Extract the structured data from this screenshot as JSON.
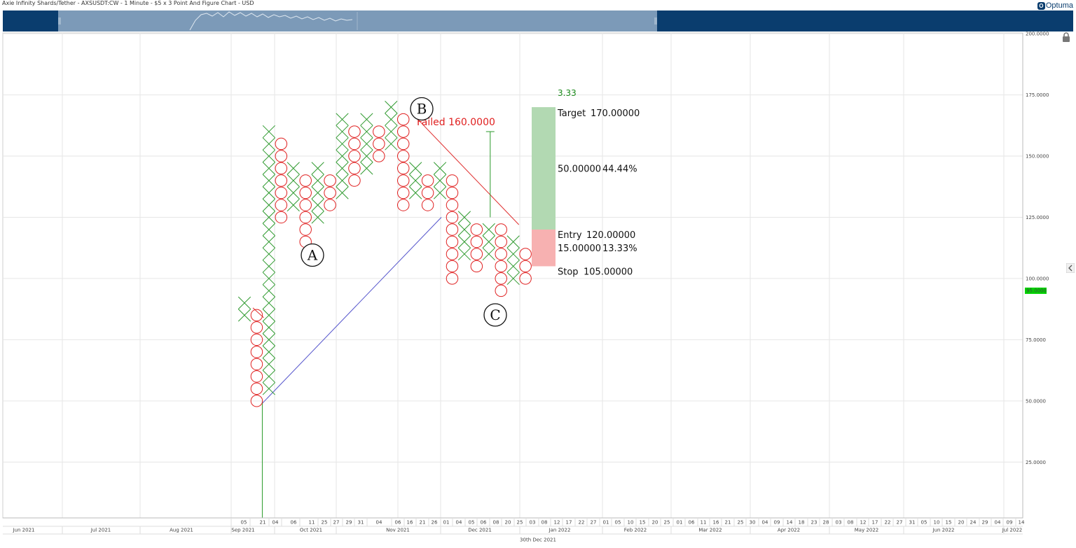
{
  "header": {
    "title": "Axie Infinity Shards/Tether - AXSUSDT:CW - 1 Minute - $5 x 3 Point And Figure Chart - USD",
    "logo": "Optuma"
  },
  "chart_data": {
    "type": "point-and-figure",
    "box_size": 5,
    "reversal": 3,
    "ylim": [
      0,
      200
    ],
    "y_ticks": [
      25,
      50,
      75,
      100,
      125,
      150,
      175,
      200
    ],
    "y_tick_labels": [
      "25.0000",
      "50.0000",
      "75.0000",
      "100.0000",
      "125.0000",
      "150.0000",
      "175.0000",
      "200.0000"
    ],
    "last_price": "95.0000",
    "columns": [
      {
        "type": "X",
        "low": 85,
        "high": 90
      },
      {
        "type": "O",
        "low": 50,
        "high": 85
      },
      {
        "type": "X",
        "low": 55,
        "high": 160
      },
      {
        "type": "O",
        "low": 125,
        "high": 155
      },
      {
        "type": "X",
        "low": 130,
        "high": 145
      },
      {
        "type": "O",
        "low": 115,
        "high": 140
      },
      {
        "type": "X",
        "low": 125,
        "high": 145
      },
      {
        "type": "O",
        "low": 130,
        "high": 140
      },
      {
        "type": "X",
        "low": 135,
        "high": 165
      },
      {
        "type": "O",
        "low": 140,
        "high": 160
      },
      {
        "type": "X",
        "low": 145,
        "high": 165
      },
      {
        "type": "O",
        "low": 150,
        "high": 160
      },
      {
        "type": "X",
        "low": 155,
        "high": 170
      },
      {
        "type": "O",
        "low": 130,
        "high": 165
      },
      {
        "type": "X",
        "low": 135,
        "high": 145
      },
      {
        "type": "O",
        "low": 130,
        "high": 140
      },
      {
        "type": "X",
        "low": 135,
        "high": 145
      },
      {
        "type": "O",
        "low": 100,
        "high": 140
      },
      {
        "type": "X",
        "low": 110,
        "high": 125
      },
      {
        "type": "O",
        "low": 105,
        "high": 120
      },
      {
        "type": "X",
        "low": 110,
        "high": 120
      },
      {
        "type": "O",
        "low": 95,
        "high": 120
      },
      {
        "type": "X",
        "low": 100,
        "high": 115
      },
      {
        "type": "O",
        "low": 100,
        "high": 110
      }
    ],
    "annotations": {
      "labels": [
        {
          "text": "A",
          "col": 5,
          "price": 110
        },
        {
          "text": "B",
          "col": 13,
          "price": 172
        },
        {
          "text": "C",
          "col": 20,
          "price": 86
        }
      ],
      "failed": "Failed 160.0000",
      "trade": {
        "ratio": "3.33",
        "target_label": "Target",
        "target": "170.00000",
        "reward": "50.00000",
        "reward_pct": "44.44%",
        "entry_label": "Entry",
        "entry": "120.00000",
        "risk": "15.00000",
        "risk_pct": "13.33%",
        "stop_label": "Stop",
        "stop": "105.00000",
        "target_price": 170,
        "entry_price": 120,
        "stop_price": 105
      }
    },
    "x_axis": {
      "day_labels": [
        "05",
        "21",
        "04",
        "06",
        "11",
        "25",
        "27",
        "29",
        "31",
        "04",
        "06",
        "16",
        "21",
        "26",
        "01",
        "04",
        "05",
        "06",
        "08",
        "20",
        "25",
        "03",
        "08",
        "12",
        "17",
        "22",
        "27",
        "01",
        "05",
        "10",
        "15",
        "20",
        "25",
        "01",
        "06",
        "11",
        "16",
        "21",
        "25",
        "30",
        "04",
        "09",
        "14",
        "18",
        "23",
        "28",
        "03",
        "08",
        "12",
        "17",
        "22",
        "27",
        "31",
        "05",
        "10",
        "15",
        "20",
        "24",
        "29",
        "04",
        "09",
        "14"
      ],
      "month_labels": [
        "Jun 2021",
        "Jul 2021",
        "Aug 2021",
        "Sep 2021",
        "Oct 2021",
        "Nov 2021",
        "Dec 2021",
        "Jan 2022",
        "Feb 2022",
        "Mar 2022",
        "Apr 2022",
        "May 2022",
        "Jun 2022",
        "Jul 2022"
      ],
      "cursor_date": "30th Dec 2021"
    }
  },
  "icons": {
    "lock": "lock-icon",
    "collapse": "chevron-left-icon"
  }
}
